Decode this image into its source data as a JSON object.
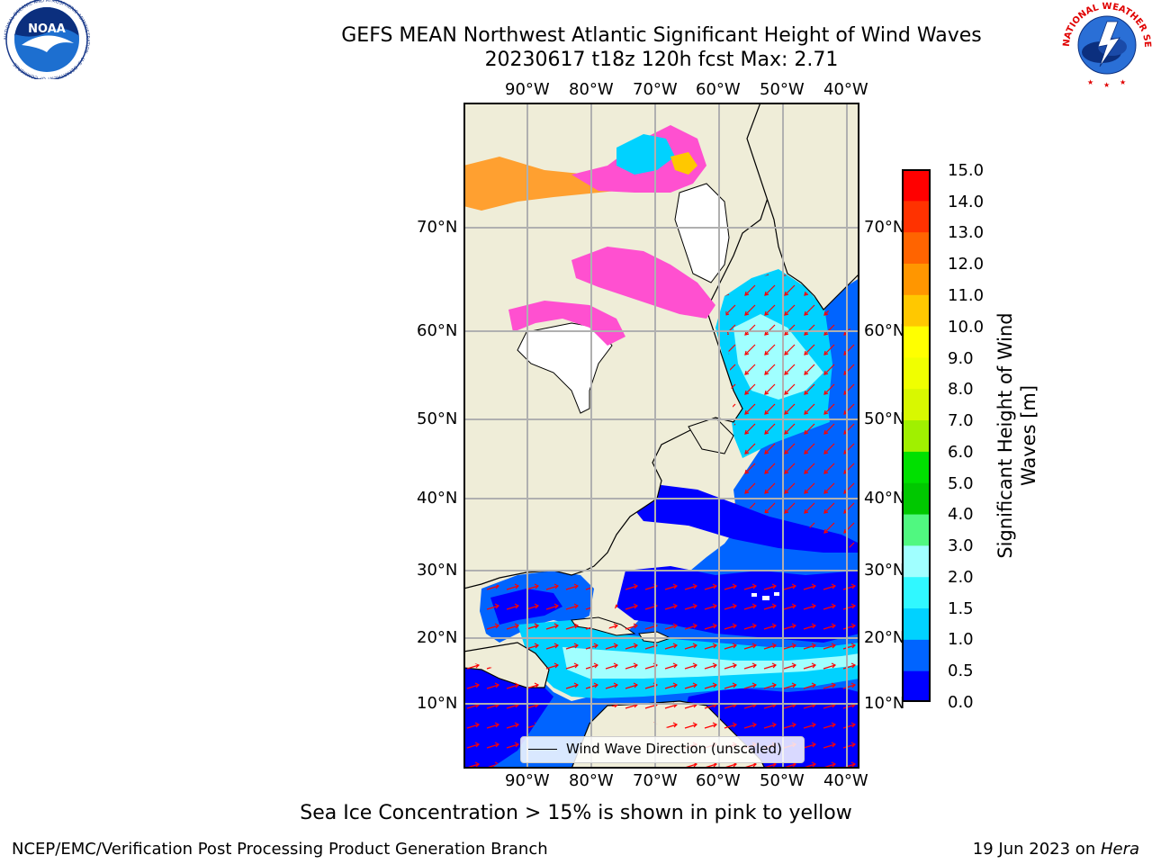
{
  "title_line1": "GEFS MEAN Northwest Atlantic Significant Height of Wind Waves",
  "title_line2": "20230617 t18z 120h fcst   Max: 2.71",
  "lon_labels": [
    "90°W",
    "80°W",
    "70°W",
    "60°W",
    "50°W",
    "40°W"
  ],
  "lat_labels": [
    "70°N",
    "60°N",
    "50°N",
    "40°N",
    "30°N",
    "20°N",
    "10°N"
  ],
  "colorbar": {
    "label_line1": "Significant Height of Wind",
    "label_line2": "Waves [m]",
    "ticks": [
      "15.0",
      "14.0",
      "13.0",
      "12.0",
      "11.0",
      "10.0",
      "9.0",
      "8.0",
      "7.0",
      "6.0",
      "5.0",
      "4.0",
      "3.0",
      "2.0",
      "1.5",
      "1.0",
      "0.5",
      "0.0"
    ],
    "colors_bottom_to_top": [
      "#0000ff",
      "#0064ff",
      "#00d2ff",
      "#30f8ff",
      "#a0ffff",
      "#50f880",
      "#00c800",
      "#00e000",
      "#a0f000",
      "#d8f800",
      "#f0ff00",
      "#ffff00",
      "#ffc800",
      "#ff9600",
      "#ff6400",
      "#ff3200",
      "#ff0000"
    ]
  },
  "legend_label": "Wind Wave Direction (unscaled)",
  "footer_note": "Sea Ice Concentration > 15% is shown in pink to yellow",
  "footer_left": "NCEP/EMC/Verification Post Processing Product Generation Branch",
  "footer_right_date": "19 Jun 2023 on ",
  "footer_right_host": "Hera",
  "logo_noaa": {
    "text": "NOAA",
    "ring_text": "NATIONAL OCEANIC AND ATMOSPHERIC ADMINISTRATION · U.S. DEPARTMENT OF COMMERCE"
  },
  "logo_nws": {
    "ring_text": "NATIONAL WEATHER SERVICE"
  },
  "colors": {
    "land": "#efedd8",
    "deep_blue": "#0000ff",
    "mid_blue": "#0064ff",
    "cyan": "#00d2ff",
    "light_cyan": "#a0ffff",
    "arrow": "#ff0000",
    "ice_pink": "#ff50d0",
    "ice_orange": "#ffa030"
  }
}
